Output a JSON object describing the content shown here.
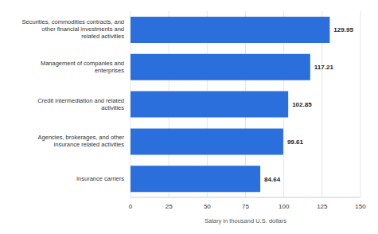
{
  "chart_data": {
    "type": "bar",
    "orientation": "horizontal",
    "categories": [
      "Securities, commodities contracts, and other financial investments and related activities",
      "Management of companies and enterprises",
      "Credit intermediation and related activities",
      "Agencies, brokerages, and other insurance related activities",
      "Insurance carriers"
    ],
    "values": [
      129.95,
      117.21,
      102.85,
      99.61,
      84.64
    ],
    "color": "#2a6fdb",
    "xlabel": "Salary in thousand U.S. dollars",
    "xlim": [
      0,
      150
    ],
    "xticks": [
      0,
      25,
      50,
      75,
      100,
      125,
      150
    ],
    "grid": true,
    "data_labels": true
  }
}
